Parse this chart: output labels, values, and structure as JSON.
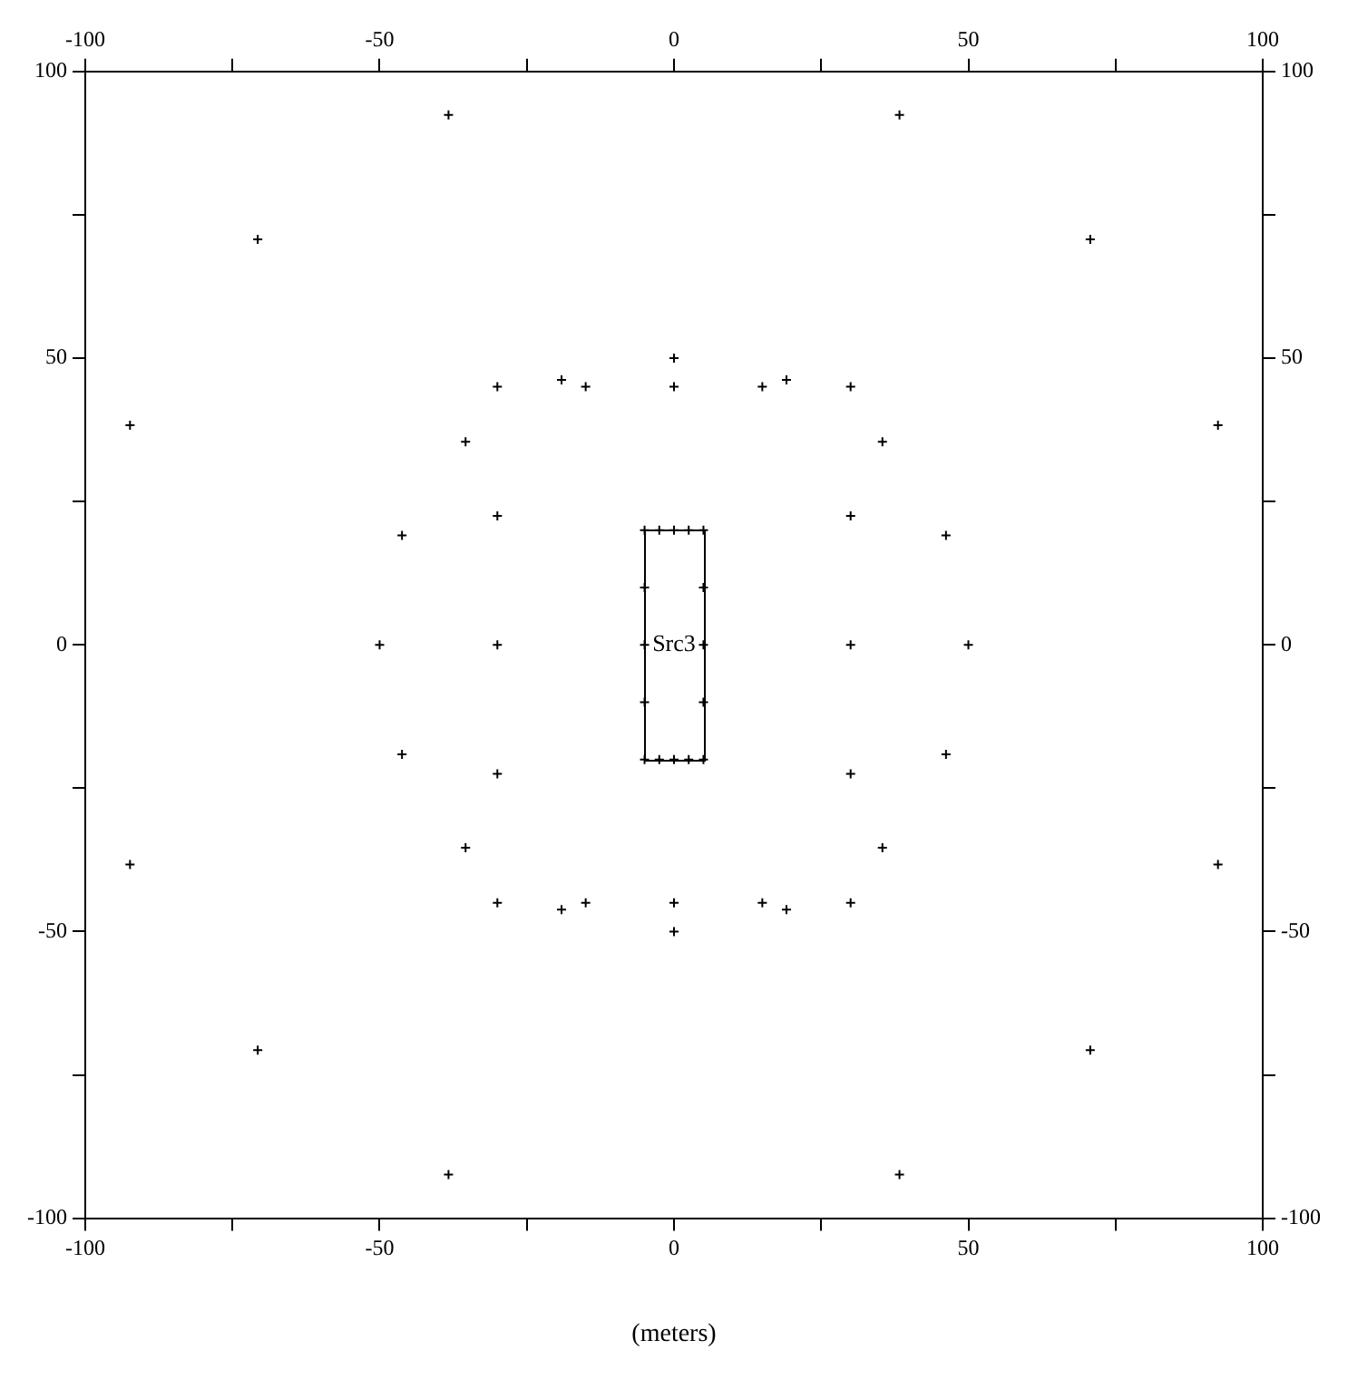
{
  "chart_data": {
    "type": "scatter",
    "xlabel": "(meters)",
    "marker": "cross",
    "grid": false,
    "xlim": [
      -100,
      100
    ],
    "ylim": [
      -100,
      100
    ],
    "x2lim": [
      -100,
      100
    ],
    "y2lim": [
      -100,
      100
    ],
    "xticks": [
      -100,
      {
        "value": -75,
        "label": null
      },
      -50,
      {
        "value": -25,
        "label": null
      },
      0,
      {
        "value": 25,
        "label": null
      },
      50,
      {
        "value": 75,
        "label": null
      },
      100
    ],
    "x2ticks": [
      -100,
      {
        "value": -75,
        "label": null
      },
      -50,
      {
        "value": -25,
        "label": null
      },
      0,
      {
        "value": 25,
        "label": null
      },
      50,
      {
        "value": 75,
        "label": null
      },
      100
    ],
    "yticks": [
      -100,
      {
        "value": -75,
        "label": null
      },
      -50,
      {
        "value": -25,
        "label": null
      },
      0,
      {
        "value": 25,
        "label": null
      },
      50,
      {
        "value": 75,
        "label": null
      },
      100
    ],
    "y2ticks": [
      -100,
      {
        "value": -75,
        "label": null
      },
      -50,
      {
        "value": -25,
        "label": null
      },
      0,
      {
        "value": 25,
        "label": null
      },
      50,
      {
        "value": 75,
        "label": null
      },
      100
    ],
    "series": [
      {
        "type": "scatter",
        "color": "#000000",
        "x": [
          -38.3,
          38.3,
          -70.7,
          70.7,
          -92.4,
          92.4,
          -92.4,
          92.4,
          -70.7,
          70.7,
          -38.3,
          38.3,
          0,
          -19.1,
          19.1,
          -35.4,
          35.4,
          -46.2,
          46.2,
          -50,
          50,
          -46.2,
          46.2,
          -35.4,
          35.4,
          -19.1,
          19.1,
          0,
          -30,
          -15,
          0,
          15,
          30,
          -30,
          30,
          -30,
          30,
          -30,
          30,
          -30,
          -15,
          0,
          15,
          30
        ],
        "values": [
          92.4,
          92.4,
          70.7,
          70.7,
          38.3,
          38.3,
          -38.3,
          -38.3,
          -70.7,
          -70.7,
          -92.4,
          -92.4,
          50,
          46.2,
          46.2,
          35.4,
          35.4,
          19.1,
          19.1,
          0,
          0,
          -19.1,
          -19.1,
          -35.4,
          -35.4,
          -46.2,
          -46.2,
          -50,
          45,
          45,
          45,
          45,
          45,
          22.5,
          22.5,
          0,
          0,
          -22.5,
          -22.5,
          -45,
          -45,
          -45,
          -45,
          -45
        ]
      },
      {
        "type": "scatter",
        "name": "Src3",
        "color": "#000000",
        "x": [
          -5,
          -2.5,
          0,
          2.5,
          5,
          5,
          5,
          5,
          5,
          2.5,
          0,
          -2.5,
          -5,
          -5,
          -5,
          -5
        ],
        "values": [
          20,
          20,
          20,
          20,
          20,
          10,
          0,
          -10,
          -20,
          -20,
          -20,
          -20,
          -20,
          -10,
          0,
          10
        ]
      }
    ]
  }
}
